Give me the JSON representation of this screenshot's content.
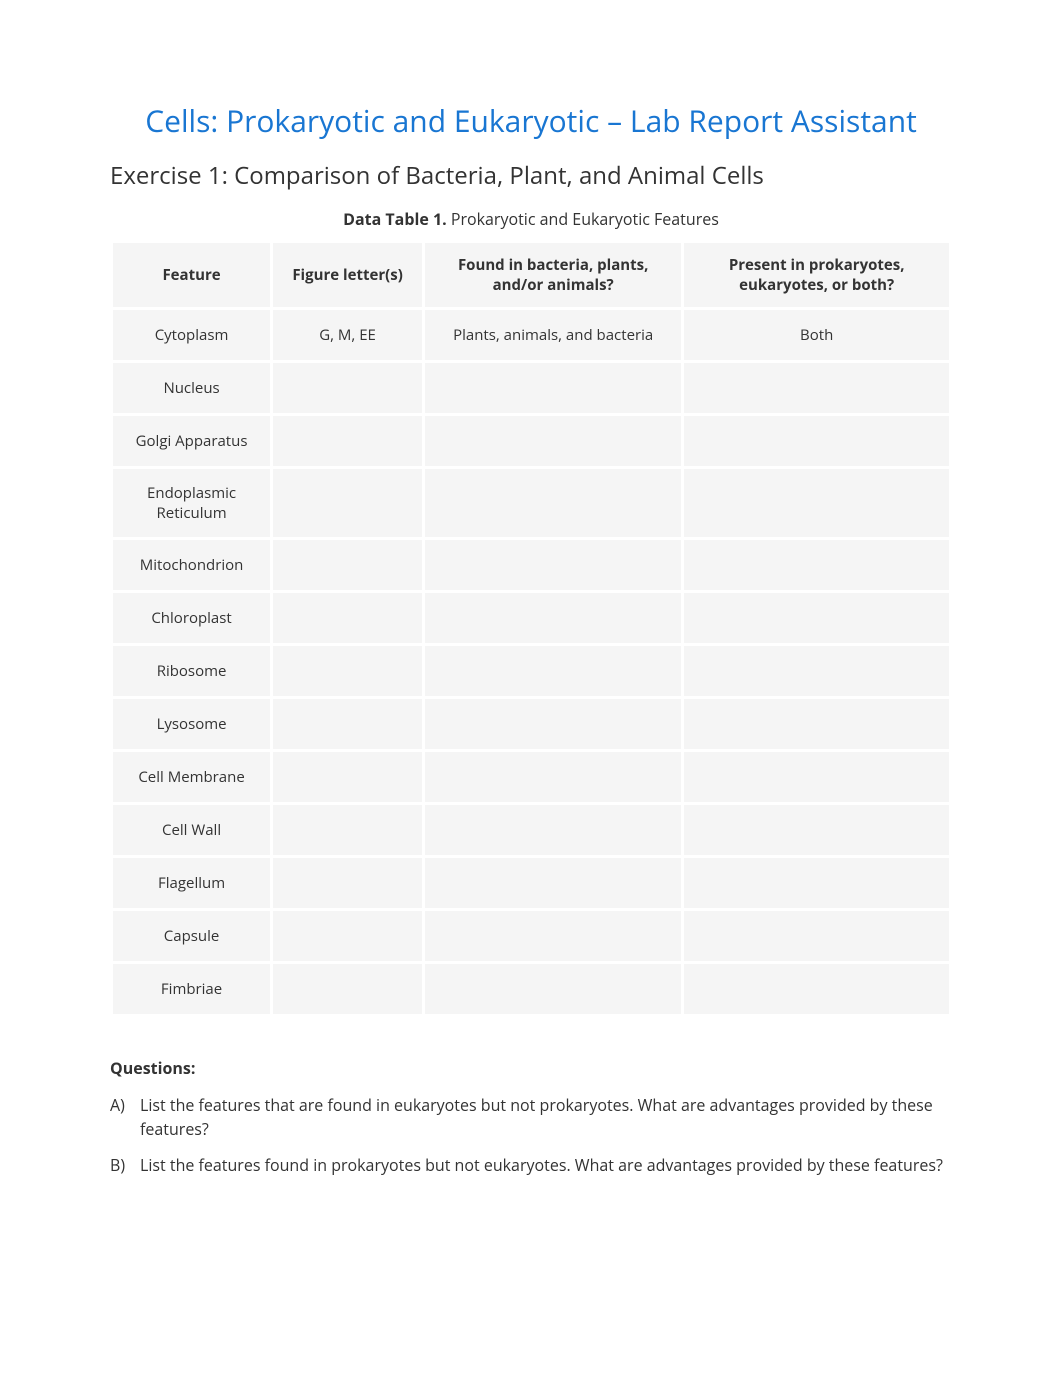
{
  "main_title": "Cells: Prokaryotic and Eukaryotic – Lab Report Assistant",
  "exercise_title": "Exercise 1: Comparison of Bacteria, Plant, and Animal Cells",
  "table_caption_bold": "Data Table 1.",
  "table_caption_rest": " Prokaryotic and Eukaryotic Features",
  "table": {
    "headers": {
      "feature": "Feature",
      "figure": "Figure letter(s)",
      "found": "Found in bacteria, plants, and/or animals?",
      "present": "Present in prokaryotes, eukaryotes, or both?"
    },
    "rows": [
      {
        "feature": "Cytoplasm",
        "figure": "G, M, EE",
        "found": "Plants, animals, and bacteria",
        "present": "Both"
      },
      {
        "feature": "Nucleus",
        "figure": "",
        "found": "",
        "present": ""
      },
      {
        "feature": "Golgi Apparatus",
        "figure": "",
        "found": "",
        "present": ""
      },
      {
        "feature": "Endoplasmic Reticulum",
        "figure": "",
        "found": "",
        "present": ""
      },
      {
        "feature": "Mitochondrion",
        "figure": "",
        "found": "",
        "present": ""
      },
      {
        "feature": "Chloroplast",
        "figure": "",
        "found": "",
        "present": ""
      },
      {
        "feature": "Ribosome",
        "figure": "",
        "found": "",
        "present": ""
      },
      {
        "feature": "Lysosome",
        "figure": "",
        "found": "",
        "present": ""
      },
      {
        "feature": "Cell Membrane",
        "figure": "",
        "found": "",
        "present": ""
      },
      {
        "feature": "Cell Wall",
        "figure": "",
        "found": "",
        "present": ""
      },
      {
        "feature": "Flagellum",
        "figure": "",
        "found": "",
        "present": ""
      },
      {
        "feature": "Capsule",
        "figure": "",
        "found": "",
        "present": ""
      },
      {
        "feature": "Fimbriae",
        "figure": "",
        "found": "",
        "present": ""
      }
    ]
  },
  "questions_heading": "Questions:",
  "questions": [
    {
      "marker": "A)",
      "text": "List the features that are found in eukaryotes but not prokaryotes. What are advantages provided by these features?"
    },
    {
      "marker": "B)",
      "text": "List the features found in prokaryotes but not eukaryotes. What are advantages provided by these features?"
    }
  ],
  "colors": {
    "title_color": "#1976d2",
    "text_color": "#333333",
    "cell_bg": "#f5f5f5",
    "page_bg": "#ffffff"
  }
}
